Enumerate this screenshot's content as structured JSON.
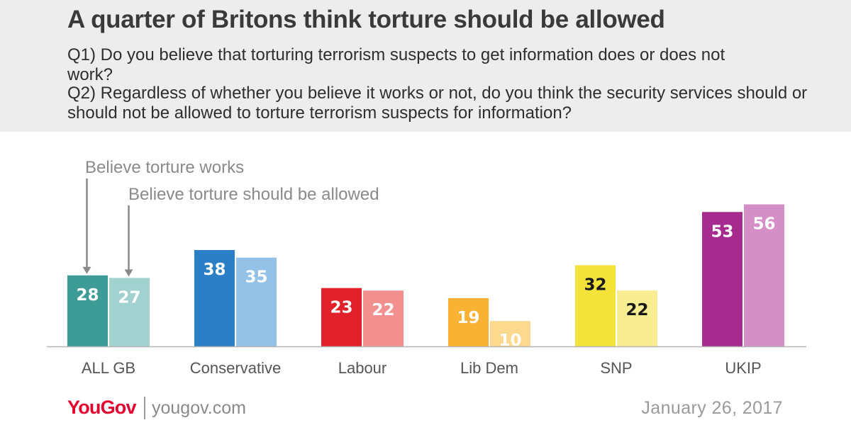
{
  "header": {
    "title": "A quarter of Britons think torture should be allowed",
    "q1": "Q1) Do you believe that torturing terrorism suspects to get information does or does not work?",
    "q2": "Q2) Regardless of whether you believe it works or not, do you think the security services should or should not be allowed to torture terrorism suspects for information?"
  },
  "chart_data": {
    "type": "bar",
    "categories": [
      "ALL GB",
      "Conservative",
      "Labour",
      "Lib Dem",
      "SNP",
      "UKIP"
    ],
    "series": [
      {
        "name": "Believe torture works",
        "values": [
          28,
          38,
          23,
          19,
          32,
          53
        ]
      },
      {
        "name": "Believe torture should be allowed",
        "values": [
          27,
          35,
          22,
          10,
          22,
          56
        ]
      }
    ],
    "colors": [
      [
        "#3d9c95",
        "#a1d2d0"
      ],
      [
        "#2b7fc4",
        "#94c2e6"
      ],
      [
        "#e1222b",
        "#f1908f"
      ],
      [
        "#f9b233",
        "#fcd98e"
      ],
      [
        "#f4e33a",
        "#f8ed93"
      ],
      [
        "#a62b8e",
        "#d48fc6"
      ]
    ],
    "label_colors": [
      "#ffffff",
      "#ffffff",
      "#ffffff",
      "#ffffff",
      "#1a1a1a",
      "#ffffff"
    ],
    "ylim": [
      0,
      60
    ],
    "grid": false
  },
  "footer": {
    "logo": "YouGov",
    "site": "yougov.com",
    "date": "January 26, 2017"
  }
}
